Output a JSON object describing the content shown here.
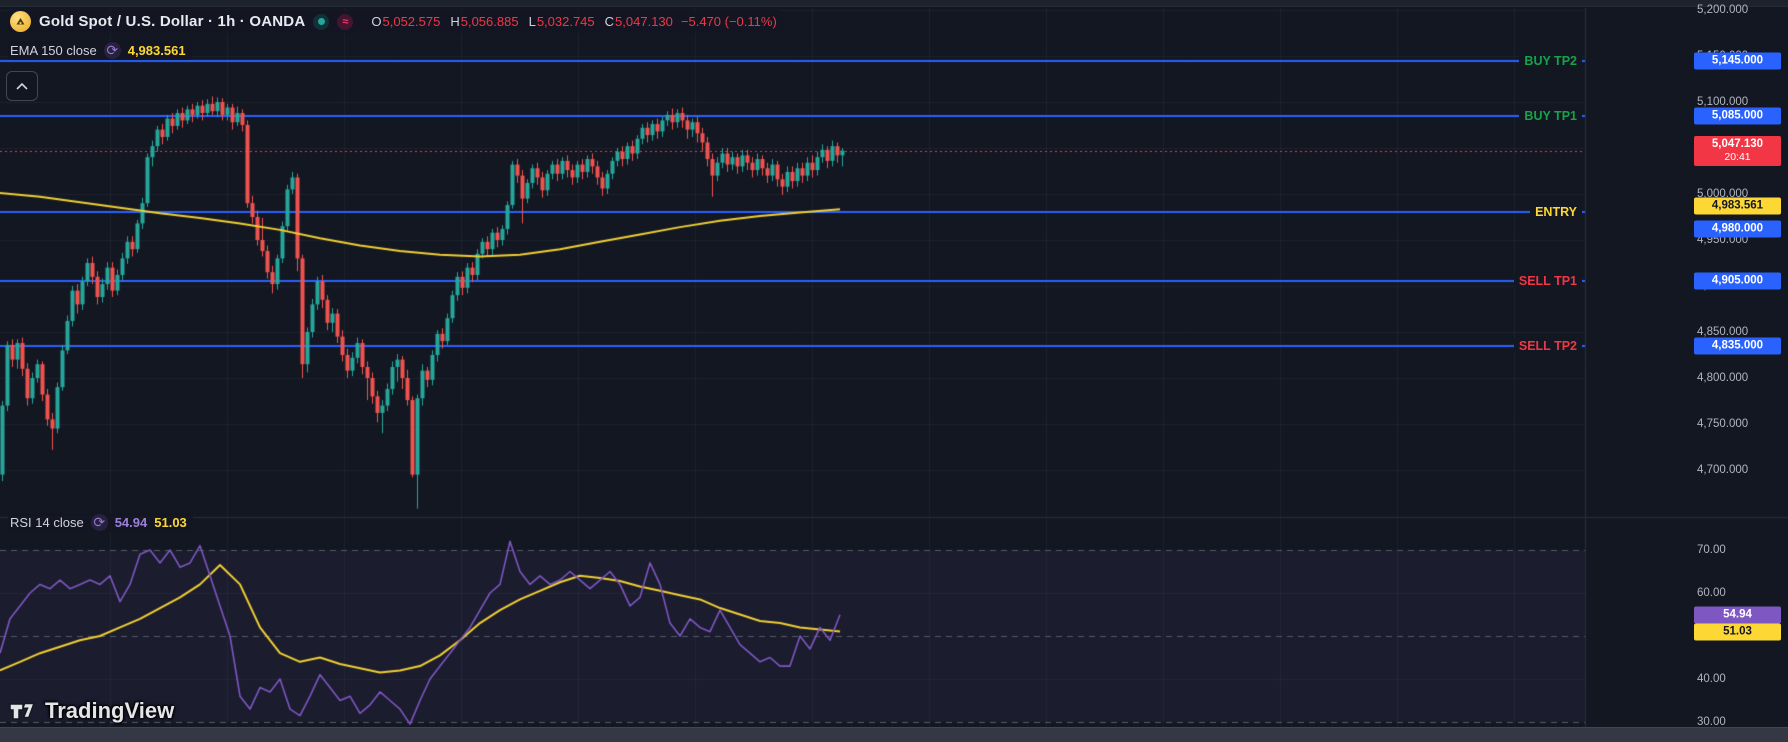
{
  "header": {
    "symbol_title": "Gold Spot / U.S. Dollar · 1h · OANDA",
    "ohlc": [
      {
        "k": "O",
        "v": "5,052.575"
      },
      {
        "k": "H",
        "v": "5,056.885"
      },
      {
        "k": "L",
        "v": "5,032.745"
      },
      {
        "k": "C",
        "v": "5,047.130"
      }
    ],
    "change": "−5.470 (−0.11%)",
    "ema_legend": {
      "label": "EMA 150 close",
      "value": "4,983.561"
    }
  },
  "rsi_legend": {
    "label": "RSI 14 close",
    "value_rsi": "54.94",
    "value_ma": "51.03"
  },
  "watermark": "TradingView",
  "colors": {
    "bg": "#131722",
    "up": "#26a69a",
    "down": "#ef5350",
    "level_blue": "#2962ff",
    "price_red": "#f23645",
    "yellow": "#fdd835",
    "line_yellow": "#f0cf32",
    "purple": "#7e57c2",
    "buy_green": "#16a34a",
    "sell_red": "#f23645",
    "grid": "#1c2230",
    "band": "rgba(126,87,194,0.08)"
  },
  "price_scale": {
    "ticks": [
      {
        "label": "5,200.000",
        "p": 5200
      },
      {
        "label": "5,150.000",
        "p": 5150
      },
      {
        "label": "5,100.000",
        "p": 5100
      },
      {
        "label": "5,050.000",
        "p": 5050
      },
      {
        "label": "5,000.000",
        "p": 5000
      },
      {
        "label": "4,950.000",
        "p": 4950
      },
      {
        "label": "4,900.000",
        "p": 4900
      },
      {
        "label": "4,850.000",
        "p": 4850
      },
      {
        "label": "4,800.000",
        "p": 4800
      },
      {
        "label": "4,750.000",
        "p": 4750
      },
      {
        "label": "4,700.000",
        "p": 4700
      }
    ],
    "tags": [
      {
        "text": "5,145.000",
        "p": 5145,
        "bg": "#2962ff",
        "fg": "#ffffff"
      },
      {
        "text": "5,085.000",
        "p": 5085,
        "bg": "#2962ff",
        "fg": "#ffffff"
      },
      {
        "text": "5,047.130",
        "sub": "20:41",
        "p": 5047.13,
        "bg": "#f23645",
        "fg": "#ffffff"
      },
      {
        "text": "4,983.561",
        "p": 4983.561,
        "dy": -3,
        "bg": "#fdd835",
        "fg": "#131722"
      },
      {
        "text": "4,980.000",
        "p": 4980,
        "dy": 17,
        "bg": "#2962ff",
        "fg": "#ffffff"
      },
      {
        "text": "4,905.000",
        "p": 4905,
        "bg": "#2962ff",
        "fg": "#ffffff"
      },
      {
        "text": "4,835.000",
        "p": 4835,
        "bg": "#2962ff",
        "fg": "#ffffff"
      }
    ]
  },
  "rsi_scale": {
    "ticks": [
      {
        "label": "70.00",
        "r": 70
      },
      {
        "label": "60.00",
        "r": 60
      },
      {
        "label": "50.00",
        "r": 50
      },
      {
        "label": "40.00",
        "r": 40
      },
      {
        "label": "30.00",
        "r": 30
      }
    ],
    "tags": [
      {
        "text": "54.94",
        "r": 54.94,
        "bg": "#7e57c2",
        "fg": "#ffffff"
      },
      {
        "text": "51.03",
        "r": 51.03,
        "bg": "#fdd835",
        "fg": "#131722"
      }
    ]
  },
  "chart_data": {
    "type": "candlestick",
    "title": "Gold Spot / U.S. Dollar 1h OANDA",
    "ylim": [
      4650,
      5210
    ],
    "levels": [
      {
        "label": "BUY TP2",
        "price": 5145,
        "color": "#16a34a"
      },
      {
        "label": "BUY TP1",
        "price": 5085,
        "color": "#16a34a"
      },
      {
        "label": "ENTRY",
        "price": 4980,
        "color": "#fdd835"
      },
      {
        "label": "SELL TP1",
        "price": 4905,
        "color": "#f23645"
      },
      {
        "label": "SELL TP2",
        "price": 4835,
        "color": "#f23645"
      }
    ],
    "current_price": {
      "price": 5047.13,
      "label": "5,047.130",
      "countdown": "20:41"
    },
    "grid_prices": [
      5200,
      5150,
      5100,
      5050,
      5000,
      4950,
      4900,
      4850,
      4800,
      4750,
      4700
    ],
    "candles": [
      [
        4695,
        4775,
        4688,
        4770
      ],
      [
        4770,
        4840,
        4764,
        4836
      ],
      [
        4836,
        4842,
        4812,
        4820
      ],
      [
        4820,
        4842,
        4810,
        4838
      ],
      [
        4838,
        4844,
        4802,
        4810
      ],
      [
        4810,
        4816,
        4770,
        4778
      ],
      [
        4778,
        4806,
        4772,
        4800
      ],
      [
        4800,
        4820,
        4795,
        4815
      ],
      [
        4815,
        4818,
        4775,
        4782
      ],
      [
        4782,
        4788,
        4748,
        4755
      ],
      [
        4755,
        4762,
        4722,
        4745
      ],
      [
        4745,
        4795,
        4740,
        4790
      ],
      [
        4790,
        4836,
        4786,
        4830
      ],
      [
        4830,
        4868,
        4826,
        4862
      ],
      [
        4862,
        4900,
        4856,
        4895
      ],
      [
        4895,
        4902,
        4870,
        4880
      ],
      [
        4880,
        4910,
        4874,
        4905
      ],
      [
        4905,
        4930,
        4900,
        4925
      ],
      [
        4925,
        4932,
        4902,
        4910
      ],
      [
        4910,
        4916,
        4880,
        4888
      ],
      [
        4888,
        4908,
        4882,
        4902
      ],
      [
        4902,
        4926,
        4896,
        4920
      ],
      [
        4920,
        4926,
        4888,
        4895
      ],
      [
        4895,
        4918,
        4890,
        4912
      ],
      [
        4912,
        4936,
        4906,
        4930
      ],
      [
        4930,
        4954,
        4924,
        4948
      ],
      [
        4948,
        4954,
        4932,
        4940
      ],
      [
        4940,
        4972,
        4936,
        4968
      ],
      [
        4968,
        4996,
        4962,
        4990
      ],
      [
        4990,
        5044,
        4986,
        5040
      ],
      [
        5040,
        5058,
        5030,
        5052
      ],
      [
        5052,
        5074,
        5046,
        5070
      ],
      [
        5070,
        5076,
        5054,
        5062
      ],
      [
        5062,
        5086,
        5058,
        5082
      ],
      [
        5082,
        5088,
        5066,
        5074
      ],
      [
        5074,
        5092,
        5070,
        5088
      ],
      [
        5088,
        5094,
        5072,
        5080
      ],
      [
        5080,
        5096,
        5076,
        5092
      ],
      [
        5092,
        5098,
        5078,
        5086
      ],
      [
        5086,
        5100,
        5082,
        5096
      ],
      [
        5096,
        5102,
        5080,
        5088
      ],
      [
        5088,
        5103,
        5084,
        5098
      ],
      [
        5098,
        5106,
        5086,
        5090
      ],
      [
        5090,
        5105,
        5084,
        5100
      ],
      [
        5100,
        5104,
        5080,
        5086
      ],
      [
        5086,
        5098,
        5080,
        5094
      ],
      [
        5094,
        5098,
        5070,
        5078
      ],
      [
        5078,
        5095,
        5074,
        5088
      ],
      [
        5088,
        5092,
        5068,
        5075
      ],
      [
        5075,
        5080,
        4985,
        4990
      ],
      [
        4990,
        4998,
        4968,
        4975
      ],
      [
        4975,
        4982,
        4944,
        4950
      ],
      [
        4950,
        4974,
        4932,
        4938
      ],
      [
        4938,
        4944,
        4908,
        4915
      ],
      [
        4915,
        4922,
        4892,
        4902
      ],
      [
        4902,
        4934,
        4896,
        4930
      ],
      [
        4930,
        4970,
        4925,
        4965
      ],
      [
        4965,
        5010,
        4960,
        5005
      ],
      [
        5005,
        5024,
        5000,
        5018
      ],
      [
        5018,
        5022,
        4916,
        4930
      ],
      [
        4930,
        4934,
        4800,
        4815
      ],
      [
        4815,
        4855,
        4806,
        4850
      ],
      [
        4850,
        4886,
        4844,
        4880
      ],
      [
        4880,
        4910,
        4874,
        4905
      ],
      [
        4905,
        4912,
        4876,
        4885
      ],
      [
        4885,
        4890,
        4852,
        4860
      ],
      [
        4860,
        4876,
        4850,
        4870
      ],
      [
        4870,
        4875,
        4838,
        4845
      ],
      [
        4845,
        4852,
        4818,
        4825
      ],
      [
        4825,
        4832,
        4800,
        4808
      ],
      [
        4808,
        4828,
        4802,
        4822
      ],
      [
        4822,
        4844,
        4816,
        4838
      ],
      [
        4838,
        4842,
        4804,
        4812
      ],
      [
        4812,
        4818,
        4776,
        4800
      ],
      [
        4800,
        4806,
        4772,
        4780
      ],
      [
        4780,
        4786,
        4752,
        4762
      ],
      [
        4762,
        4776,
        4740,
        4770
      ],
      [
        4770,
        4794,
        4764,
        4788
      ],
      [
        4788,
        4818,
        4782,
        4812
      ],
      [
        4812,
        4826,
        4796,
        4820
      ],
      [
        4820,
        4824,
        4788,
        4800
      ],
      [
        4800,
        4809,
        4770,
        4776
      ],
      [
        4776,
        4780,
        4692,
        4695
      ],
      [
        4695,
        4782,
        4658,
        4778
      ],
      [
        4778,
        4815,
        4770,
        4808
      ],
      [
        4808,
        4812,
        4790,
        4798
      ],
      [
        4798,
        4830,
        4792,
        4825
      ],
      [
        4825,
        4852,
        4818,
        4848
      ],
      [
        4848,
        4854,
        4832,
        4840
      ],
      [
        4840,
        4870,
        4836,
        4865
      ],
      [
        4865,
        4895,
        4860,
        4890
      ],
      [
        4890,
        4915,
        4884,
        4910
      ],
      [
        4910,
        4916,
        4890,
        4898
      ],
      [
        4898,
        4925,
        4892,
        4920
      ],
      [
        4920,
        4926,
        4904,
        4912
      ],
      [
        4912,
        4940,
        4906,
        4935
      ],
      [
        4935,
        4952,
        4930,
        4948
      ],
      [
        4948,
        4954,
        4932,
        4940
      ],
      [
        4940,
        4962,
        4934,
        4958
      ],
      [
        4958,
        4964,
        4942,
        4950
      ],
      [
        4950,
        4966,
        4944,
        4962
      ],
      [
        4962,
        4992,
        4956,
        4988
      ],
      [
        4988,
        5036,
        4984,
        5032
      ],
      [
        5032,
        5038,
        5012,
        5020
      ],
      [
        5020,
        5026,
        4968,
        4995
      ],
      [
        4995,
        5016,
        4990,
        5012
      ],
      [
        5012,
        5032,
        5006,
        5028
      ],
      [
        5028,
        5034,
        5010,
        5018
      ],
      [
        5018,
        5024,
        4996,
        5004
      ],
      [
        5004,
        5026,
        4998,
        5022
      ],
      [
        5022,
        5036,
        5016,
        5032
      ],
      [
        5032,
        5038,
        5014,
        5022
      ],
      [
        5022,
        5040,
        5016,
        5036
      ],
      [
        5036,
        5042,
        5018,
        5026
      ],
      [
        5026,
        5032,
        5010,
        5018
      ],
      [
        5018,
        5036,
        5012,
        5032
      ],
      [
        5032,
        5038,
        5016,
        5024
      ],
      [
        5024,
        5042,
        5018,
        5038
      ],
      [
        5038,
        5044,
        5022,
        5030
      ],
      [
        5030,
        5036,
        5010,
        5018
      ],
      [
        5018,
        5024,
        4998,
        5006
      ],
      [
        5006,
        5026,
        5000,
        5022
      ],
      [
        5022,
        5040,
        5016,
        5036
      ],
      [
        5036,
        5050,
        5030,
        5046
      ],
      [
        5046,
        5052,
        5030,
        5038
      ],
      [
        5038,
        5056,
        5032,
        5052
      ],
      [
        5052,
        5058,
        5036,
        5044
      ],
      [
        5044,
        5064,
        5038,
        5060
      ],
      [
        5060,
        5076,
        5054,
        5072
      ],
      [
        5072,
        5078,
        5056,
        5064
      ],
      [
        5064,
        5080,
        5058,
        5076
      ],
      [
        5076,
        5082,
        5060,
        5068
      ],
      [
        5068,
        5084,
        5062,
        5080
      ],
      [
        5080,
        5090,
        5074,
        5086
      ],
      [
        5086,
        5093,
        5070,
        5078
      ],
      [
        5078,
        5092,
        5072,
        5088
      ],
      [
        5088,
        5094,
        5072,
        5080
      ],
      [
        5080,
        5086,
        5060,
        5070
      ],
      [
        5070,
        5082,
        5062,
        5078
      ],
      [
        5078,
        5084,
        5056,
        5066
      ],
      [
        5066,
        5072,
        5046,
        5056
      ],
      [
        5056,
        5062,
        5030,
        5038
      ],
      [
        5038,
        5044,
        4997,
        5020
      ],
      [
        5020,
        5040,
        5014,
        5034
      ],
      [
        5034,
        5050,
        5028,
        5044
      ],
      [
        5044,
        5050,
        5024,
        5032
      ],
      [
        5032,
        5046,
        5026,
        5040
      ],
      [
        5040,
        5044,
        5022,
        5030
      ],
      [
        5030,
        5048,
        5024,
        5042
      ],
      [
        5042,
        5048,
        5026,
        5034
      ],
      [
        5034,
        5040,
        5018,
        5026
      ],
      [
        5026,
        5044,
        5020,
        5038
      ],
      [
        5038,
        5042,
        5020,
        5028
      ],
      [
        5028,
        5034,
        5012,
        5020
      ],
      [
        5020,
        5038,
        5014,
        5032
      ],
      [
        5032,
        5036,
        5008,
        5016
      ],
      [
        5016,
        5022,
        4999,
        5008
      ],
      [
        5008,
        5030,
        5002,
        5024
      ],
      [
        5024,
        5030,
        5006,
        5014
      ],
      [
        5014,
        5034,
        5008,
        5028
      ],
      [
        5028,
        5034,
        5012,
        5020
      ],
      [
        5020,
        5040,
        5014,
        5034
      ],
      [
        5034,
        5042,
        5018,
        5026
      ],
      [
        5026,
        5046,
        5020,
        5040
      ],
      [
        5040,
        5054,
        5034,
        5048
      ],
      [
        5048,
        5052,
        5028,
        5036
      ],
      [
        5036,
        5058,
        5030,
        5052
      ],
      [
        5052,
        5056,
        5034,
        5042
      ],
      [
        5042,
        5050,
        5030,
        5047.13
      ]
    ],
    "ema150": {
      "x_step": 40,
      "values": [
        5001,
        4997,
        4991,
        4985,
        4979,
        4974,
        4968,
        4961,
        4952,
        4944,
        4938,
        4934,
        4932,
        4934,
        4940,
        4948,
        4956,
        4964,
        4971,
        4976,
        4980,
        4983.5
      ]
    },
    "rsi": {
      "x_step": 10,
      "values": [
        46,
        54,
        57,
        60,
        62,
        61,
        63,
        61,
        62,
        63,
        62,
        64,
        58,
        62,
        69,
        70,
        67,
        70,
        66,
        67,
        71,
        64,
        57,
        50,
        36,
        33,
        38,
        37,
        40,
        33,
        31.5,
        36,
        41,
        38,
        35,
        36,
        32,
        34,
        37,
        35,
        33,
        29.5,
        35,
        40,
        43,
        46,
        49,
        52,
        56,
        60,
        62,
        72,
        65,
        62,
        64,
        62,
        63,
        65,
        63,
        61,
        63,
        65,
        62,
        57,
        59,
        67,
        62,
        53,
        50,
        54,
        52,
        51,
        56,
        52,
        48,
        46,
        44,
        45,
        43,
        43,
        50,
        47,
        52,
        49,
        54.94
      ],
      "ma_x_step": 20,
      "ma_values": [
        42,
        44,
        46,
        47.5,
        49,
        50,
        52,
        54,
        56.5,
        59,
        62,
        66.5,
        62,
        52,
        46,
        44,
        45,
        43.5,
        42.5,
        41.5,
        42,
        43,
        45.5,
        49,
        53,
        56,
        58.5,
        60.5,
        62.5,
        64,
        63.5,
        62.8,
        61.5,
        60.5,
        59.5,
        58.5,
        56.5,
        55,
        53.5,
        53,
        52,
        51.5,
        51.03
      ],
      "bands": [
        70,
        50,
        30
      ],
      "solid_grid": [
        60,
        40
      ],
      "range": [
        30,
        70
      ]
    }
  }
}
